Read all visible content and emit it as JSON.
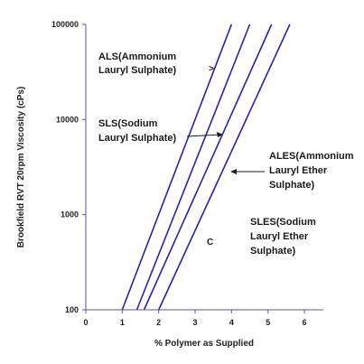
{
  "chart_data": {
    "type": "line",
    "title": "",
    "xlabel": "% Polymer as Supplied",
    "ylabel": "Brookfield RVT 20rpm Viscosity (cPs)",
    "xlim": [
      0,
      6
    ],
    "ylim": [
      100,
      100000
    ],
    "y_scale": "log",
    "x_ticks": [
      "0",
      "1",
      "2",
      "3",
      "4",
      "5",
      "6"
    ],
    "y_ticks": [
      {
        "value": 100,
        "label": "100"
      },
      {
        "value": 1000,
        "label": "1000"
      },
      {
        "value": 10000,
        "label": "10000"
      },
      {
        "value": 100000,
        "label": "100000"
      }
    ],
    "grid": false,
    "legend": "none",
    "line_color": "#2323b4",
    "series": [
      {
        "x": [
          1.0,
          4.0
        ],
        "y": [
          100,
          100000
        ]
      },
      {
        "x": [
          1.4,
          4.5
        ],
        "y": [
          100,
          100000
        ]
      },
      {
        "x": [
          1.6,
          5.1
        ],
        "y": [
          100,
          100000
        ]
      },
      {
        "x": [
          2.0,
          5.6
        ],
        "y": [
          100,
          100000
        ]
      }
    ],
    "annotations": [
      {
        "lines": [
          "ALS(Ammonium",
          "Lauryl Sulphate)"
        ],
        "marker": ">"
      },
      {
        "lines": [
          "SLS(Sodium",
          "Lauryl Sulphate)"
        ],
        "marker": "arrow"
      },
      {
        "lines": [
          "ALES(Ammonium",
          "Lauryl Ether",
          "Sulphate)"
        ],
        "marker": "arrow"
      },
      {
        "lines": [
          "SLES(Sodium",
          "Lauryl Ether",
          "Sulphate)"
        ],
        "marker": "C"
      }
    ]
  }
}
